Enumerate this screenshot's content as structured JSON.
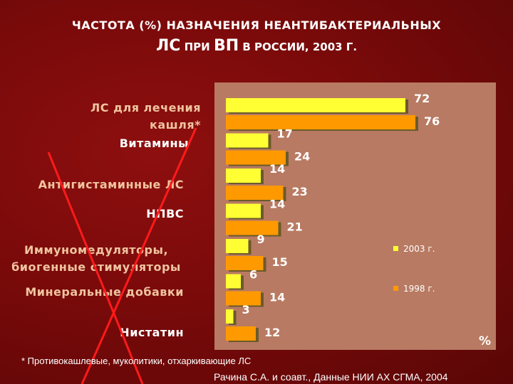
{
  "title": {
    "line1": "ЧАСТОТА (%) НАЗНАЧЕНИЯ НЕАНТИБАКТЕРИАЛЬНЫХ",
    "line2_a": "ЛС",
    "line2_b": "ПРИ",
    "line2_c": "ВП",
    "line2_d": "В РОССИИ, 2003 Г."
  },
  "chart_data": {
    "type": "bar",
    "orientation": "horizontal",
    "categories": [
      "ЛС для лечения кашля*",
      "Витамины",
      "Антигистаминные ЛС",
      "НПВС",
      "Иммуномедуляторы, биогенные стимуляторы",
      "Минеральные добавки",
      "Нистатин"
    ],
    "series": [
      {
        "name": "2003 г.",
        "color": "#ffff33",
        "values": [
          72,
          17,
          14,
          14,
          9,
          6,
          3
        ]
      },
      {
        "name": "1998 г.",
        "color": "#ff9900",
        "values": [
          76,
          24,
          23,
          21,
          15,
          14,
          12
        ]
      }
    ],
    "xlim": [
      0,
      100
    ],
    "unit_label": "%",
    "legend": "right",
    "grid": false
  },
  "footnote": "* Противокашлевые, муколитики, отхаркивающие ЛС",
  "source": "Рачина С.А. и соавт., Данные НИИ АХ СГМА, 2004"
}
